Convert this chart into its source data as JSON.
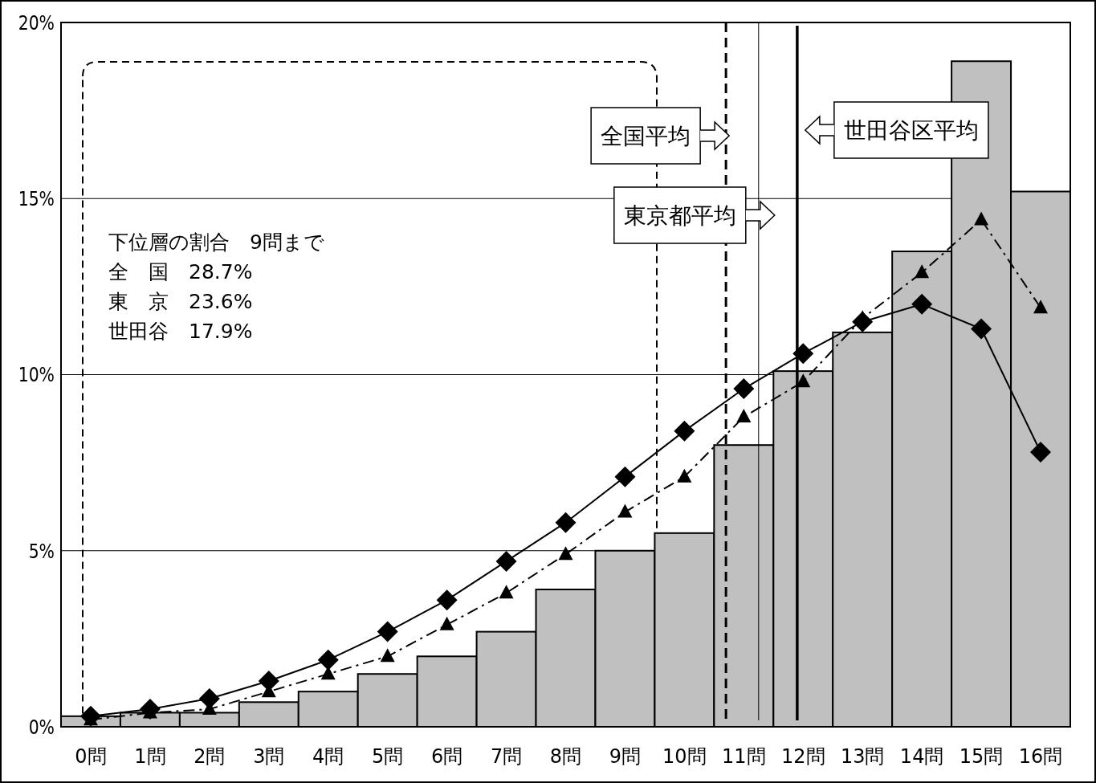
{
  "chart_data": {
    "type": "bar",
    "x": [
      0,
      1,
      2,
      3,
      4,
      5,
      6,
      7,
      8,
      9,
      10,
      11,
      12,
      13,
      14,
      15,
      16
    ],
    "xlim": [
      -0.5,
      16.5
    ],
    "xticks": [
      {
        "value": 0,
        "label": "0問"
      },
      {
        "value": 1,
        "label": "1問"
      },
      {
        "value": 2,
        "label": "2問"
      },
      {
        "value": 3,
        "label": "3問"
      },
      {
        "value": 4,
        "label": "4問"
      },
      {
        "value": 5,
        "label": "5問"
      },
      {
        "value": 6,
        "label": "6問"
      },
      {
        "value": 7,
        "label": "7問"
      },
      {
        "value": 8,
        "label": "8問"
      },
      {
        "value": 9,
        "label": "9問"
      },
      {
        "value": 10,
        "label": "10問"
      },
      {
        "value": 11,
        "label": "11問"
      },
      {
        "value": 12,
        "label": "12問"
      },
      {
        "value": 13,
        "label": "13問"
      },
      {
        "value": 14,
        "label": "14問"
      },
      {
        "value": 15,
        "label": "15問"
      },
      {
        "value": 16,
        "label": "16問"
      }
    ],
    "ylim": [
      0,
      20
    ],
    "yticks": [
      {
        "value": 0,
        "label": "0%"
      },
      {
        "value": 5,
        "label": "5%"
      },
      {
        "value": 10,
        "label": "10%"
      },
      {
        "value": 15,
        "label": "15%"
      },
      {
        "value": 20,
        "label": "20%"
      }
    ],
    "grid": "y",
    "series": [
      {
        "color": "#c0c0c0",
        "values": [
          0.3,
          0.4,
          0.4,
          0.7,
          1.0,
          1.5,
          2.0,
          2.7,
          3.9,
          5.0,
          5.5,
          8.0,
          10.1,
          11.2,
          13.5,
          18.9,
          15.2
        ]
      },
      {
        "type": "line",
        "color": "#000000",
        "marker": "diamond",
        "line_style": "solid",
        "values": [
          0.3,
          0.5,
          0.8,
          1.3,
          1.9,
          2.7,
          3.6,
          4.7,
          5.8,
          7.1,
          8.4,
          9.6,
          10.6,
          11.5,
          12.0,
          11.3,
          7.8
        ]
      },
      {
        "type": "line",
        "color": "#000000",
        "marker": "triangle",
        "line_style": "dashed",
        "values": [
          0.2,
          0.4,
          0.5,
          1.0,
          1.5,
          2.0,
          2.9,
          3.8,
          4.9,
          6.1,
          7.1,
          8.8,
          9.8,
          11.6,
          12.9,
          14.4,
          11.9
        ]
      }
    ],
    "ref_lines": [
      {
        "axis": "x",
        "value": 10.7,
        "label": "全国平均",
        "line_style": "dashed"
      },
      {
        "axis": "x",
        "value": 11.25,
        "label": "東京都平均",
        "line_style": "solid"
      },
      {
        "axis": "x",
        "value": 11.9,
        "label": "世田谷区平均",
        "line_style": "solid"
      }
    ],
    "annotations": [
      "下位層の割合　9問まで",
      "全　国　28.7%",
      "東　京　23.6%",
      "世田谷　17.9%"
    ]
  }
}
